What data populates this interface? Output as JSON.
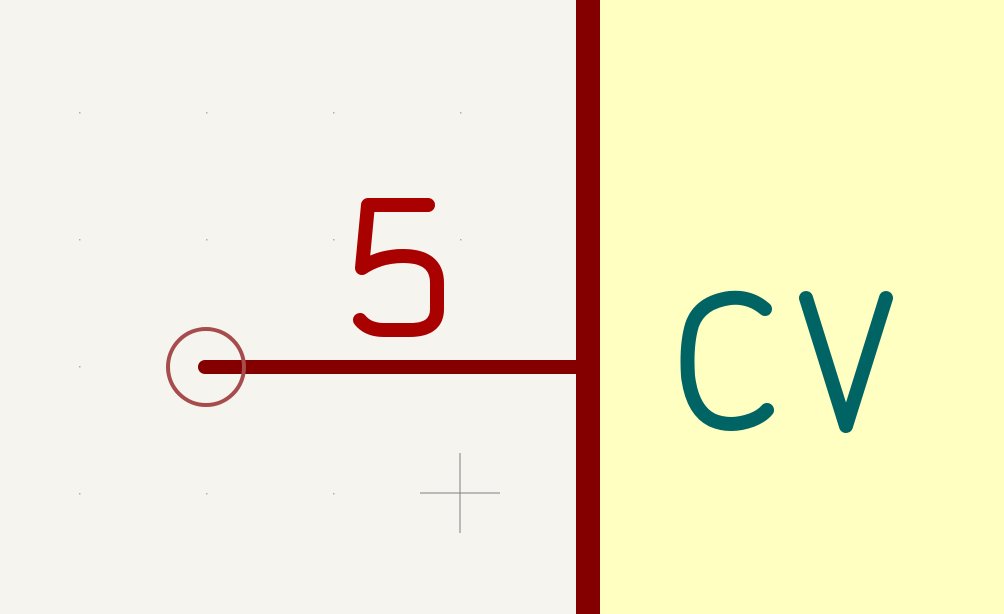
{
  "schematic": {
    "pin_number": "5",
    "pin_name": "CV",
    "colors": {
      "canvas_background": "#f5f4ef",
      "symbol_body_fill": "#ffffc2",
      "symbol_body_outline": "#840000",
      "pin_line": "#840000",
      "pin_number_text": "#a90000",
      "pin_name_text": "#006464",
      "pin_connection_circle": "#a64c4c",
      "grid_dot": "#b0b0b0",
      "cursor_crosshair": "#808080"
    }
  }
}
